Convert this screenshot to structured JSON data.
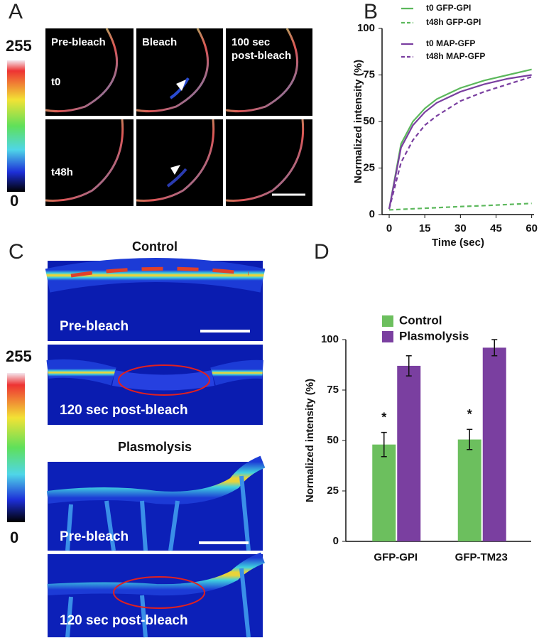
{
  "panel_a": {
    "label": "A",
    "scale_max": "255",
    "scale_min": "0",
    "columns": [
      "Pre-bleach",
      "Bleach"
    ],
    "column_3": [
      "100 sec",
      "post-bleach"
    ],
    "rows": [
      "t0",
      "t48h"
    ]
  },
  "panel_c": {
    "label": "C",
    "scale_max": "255",
    "scale_min": "0",
    "groups": [
      "Control",
      "Plasmolysis"
    ],
    "pre": "Pre-bleach",
    "post": "120 sec post-bleach"
  },
  "chart_data": [
    {
      "type": "line",
      "panel_label": "B",
      "y_label": "Normalized intensity (%)",
      "x_label": "Time (sec)",
      "x": [
        0,
        5,
        10,
        15,
        20,
        30,
        40,
        50,
        60
      ],
      "series": [
        {
          "name": "t0 GFP-GPI",
          "color": "#5cb85c",
          "dash": false,
          "values": [
            3,
            38,
            50,
            57,
            62,
            68,
            72,
            75,
            78
          ]
        },
        {
          "name": "t48h GFP-GPI",
          "color": "#5cb85c",
          "dash": true,
          "values": [
            2.5,
            2.8,
            3.1,
            3.4,
            3.7,
            4.3,
            4.8,
            5.4,
            6
          ]
        },
        {
          "name": "t0 MAP-GFP",
          "color": "#7a3fa0",
          "dash": false,
          "values": [
            3,
            36,
            48,
            55,
            60,
            66,
            70,
            73,
            75
          ]
        },
        {
          "name": "t48h MAP-GFP",
          "color": "#7a3fa0",
          "dash": true,
          "values": [
            3,
            28,
            40,
            48,
            53,
            61,
            66,
            70,
            74
          ]
        }
      ],
      "xlim": [
        -3,
        61
      ],
      "ylim": [
        0,
        100
      ],
      "xticks": [
        0,
        15,
        30,
        45,
        60
      ],
      "yticks": [
        0,
        25,
        50,
        75,
        100
      ]
    },
    {
      "type": "bar",
      "panel_label": "D",
      "y_label": "Normalized intensity (%)",
      "categories": [
        "GFP-GPI",
        "GFP-TM23"
      ],
      "series": [
        {
          "name": "Control",
          "color": "#6cbf5e",
          "values": [
            48,
            50.5
          ],
          "errors": [
            6,
            5
          ],
          "annotations": [
            "*",
            "*"
          ]
        },
        {
          "name": "Plasmolysis",
          "color": "#7a3fa0",
          "values": [
            87,
            96
          ],
          "errors": [
            5,
            4
          ]
        }
      ],
      "ylim": [
        0,
        100
      ],
      "yticks": [
        0,
        25,
        50,
        75,
        100
      ]
    }
  ]
}
